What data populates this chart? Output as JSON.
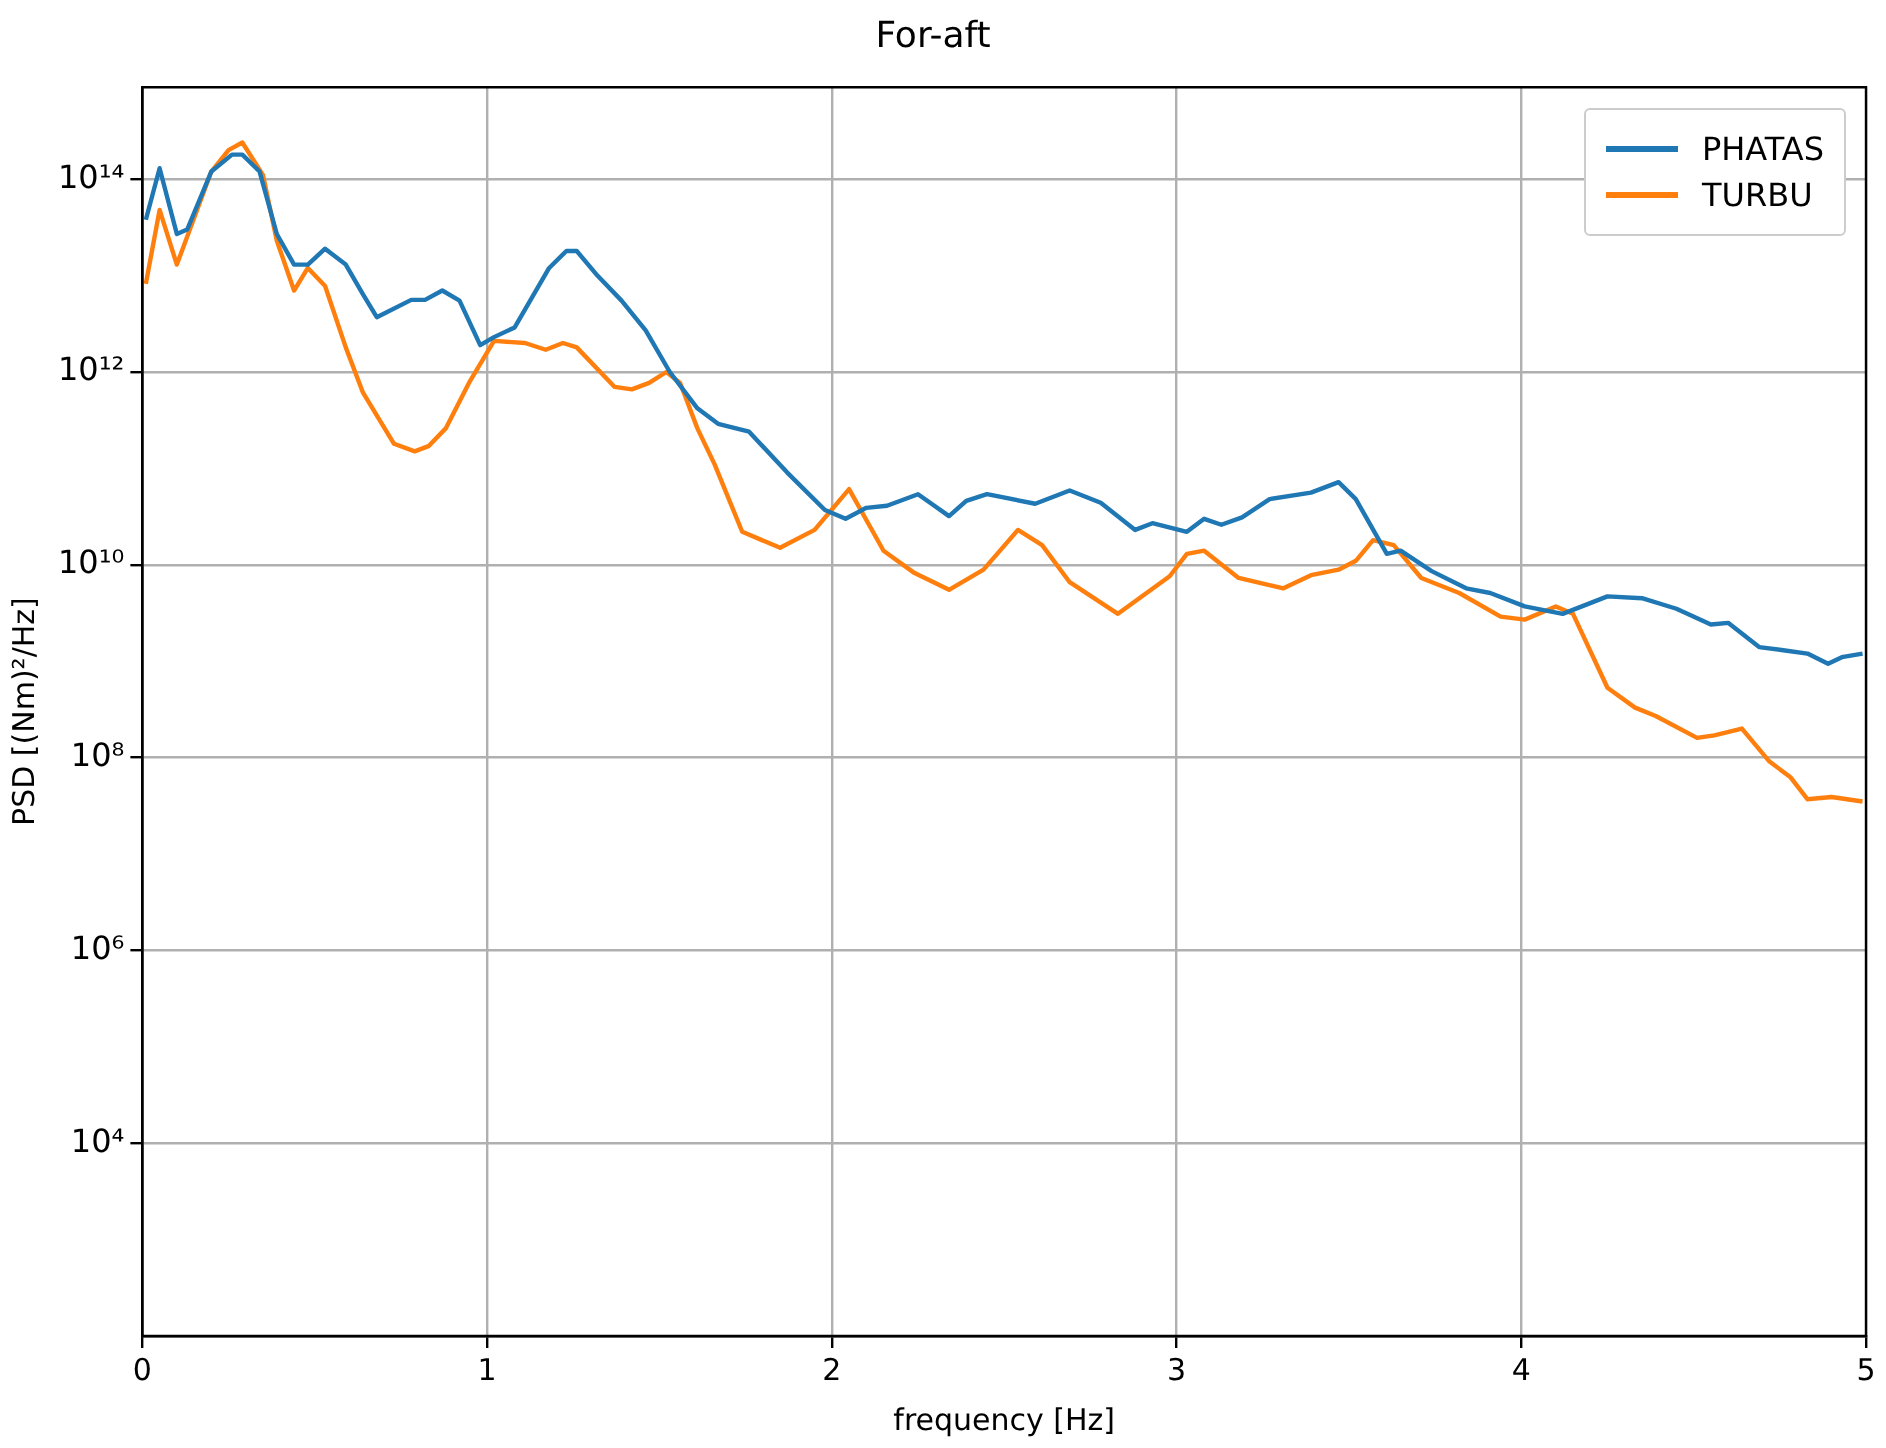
{
  "chart_data": {
    "type": "line",
    "title": "For-aft",
    "xlabel": "frequency [Hz]",
    "ylabel": "PSD [(Nm)²/Hz]",
    "log": "y",
    "grid": true,
    "legend": "top right",
    "marker": "none",
    "line_style": "solid",
    "xlim": [
      0,
      5
    ],
    "xticks": [
      0,
      1,
      2,
      3,
      4,
      5
    ],
    "ylim": [
      100,
      900000000000000.0
    ],
    "yticks": [
      {
        "value": 10000.0,
        "label": "10⁴"
      },
      {
        "value": 1000000.0,
        "label": "10⁶"
      },
      {
        "value": 100000000.0,
        "label": "10⁸"
      },
      {
        "value": 10000000000.0,
        "label": "10¹⁰"
      },
      {
        "value": 1000000000000.0,
        "label": "10¹²"
      },
      {
        "value": 100000000000000.0,
        "label": "10¹⁴"
      }
    ],
    "series": [
      {
        "name": "PHATAS",
        "color": "#1f77b4",
        "x": [
          0.01,
          0.05,
          0.1,
          0.13,
          0.2,
          0.26,
          0.29,
          0.34,
          0.39,
          0.44,
          0.48,
          0.53,
          0.59,
          0.64,
          0.68,
          0.78,
          0.82,
          0.87,
          0.92,
          0.98,
          1.02,
          1.08,
          1.18,
          1.23,
          1.26,
          1.32,
          1.39,
          1.46,
          1.53,
          1.61,
          1.67,
          1.76,
          1.87,
          1.98,
          2.04,
          2.1,
          2.16,
          2.25,
          2.34,
          2.39,
          2.45,
          2.59,
          2.69,
          2.78,
          2.88,
          2.93,
          3.03,
          3.08,
          3.13,
          3.19,
          3.27,
          3.39,
          3.47,
          3.52,
          3.61,
          3.65,
          3.74,
          3.84,
          3.91,
          4.01,
          4.12,
          4.25,
          4.35,
          4.45,
          4.55,
          4.6,
          4.69,
          4.76,
          4.83,
          4.89,
          4.93,
          4.99
        ],
        "values": [
          38000000000000.0,
          130000000000000.0,
          27000000000000.0,
          30000000000000.0,
          120000000000000.0,
          180000000000000.0,
          180000000000000.0,
          120000000000000.0,
          27000000000000.0,
          13000000000000.0,
          13000000000000.0,
          19000000000000.0,
          13000000000000.0,
          6400000000000.0,
          3700000000000.0,
          5600000000000.0,
          5600000000000.0,
          7000000000000.0,
          5500000000000.0,
          1900000000000.0,
          2300000000000.0,
          2900000000000.0,
          12000000000000.0,
          18000000000000.0,
          18000000000000.0,
          10000000000000.0,
          5500000000000.0,
          2700000000000.0,
          1000000000000.0,
          420000000000.0,
          290000000000.0,
          240000000000.0,
          91000000000.0,
          37000000000.0,
          30000000000.0,
          39000000000.0,
          41000000000.0,
          54000000000.0,
          32000000000.0,
          46000000000.0,
          54000000000.0,
          43000000000.0,
          59000000000.0,
          44000000000.0,
          23000000000.0,
          27000000000.0,
          22000000000.0,
          30000000000.0,
          26000000000.0,
          31000000000.0,
          48000000000.0,
          56000000000.0,
          72000000000.0,
          48000000000.0,
          13000000000.0,
          14000000000.0,
          8600000000.0,
          5700000000.0,
          5100000000.0,
          3700000000.0,
          3100000000.0,
          4700000000.0,
          4500000000.0,
          3500000000.0,
          2400000000.0,
          2500000000.0,
          1400000000.0,
          1300000000.0,
          1200000000.0,
          940000000.0,
          1100000000.0,
          1200000000.0
        ]
      },
      {
        "name": "TURBU",
        "color": "#ff7f0e",
        "x": [
          0.01,
          0.05,
          0.1,
          0.2,
          0.25,
          0.29,
          0.35,
          0.39,
          0.44,
          0.48,
          0.53,
          0.59,
          0.64,
          0.73,
          0.79,
          0.83,
          0.88,
          0.95,
          1.02,
          1.11,
          1.17,
          1.22,
          1.26,
          1.37,
          1.42,
          1.47,
          1.52,
          1.56,
          1.61,
          1.66,
          1.74,
          1.85,
          1.95,
          2.05,
          2.15,
          2.24,
          2.34,
          2.44,
          2.54,
          2.61,
          2.69,
          2.83,
          2.98,
          3.03,
          3.08,
          3.18,
          3.31,
          3.39,
          3.47,
          3.52,
          3.57,
          3.63,
          3.71,
          3.82,
          3.94,
          4.01,
          4.1,
          4.15,
          4.25,
          4.33,
          4.39,
          4.51,
          4.56,
          4.64,
          4.72,
          4.78,
          4.83,
          4.9,
          4.99
        ],
        "values": [
          8200000000000.0,
          48000000000000.0,
          13000000000000.0,
          120000000000000.0,
          200000000000000.0,
          240000000000000.0,
          110000000000000.0,
          23000000000000.0,
          7000000000000.0,
          12000000000000.0,
          7800000000000.0,
          1800000000000.0,
          610000000000.0,
          180000000000.0,
          150000000000.0,
          170000000000.0,
          260000000000.0,
          800000000000.0,
          2100000000000.0,
          2000000000000.0,
          1700000000000.0,
          2000000000000.0,
          1800000000000.0,
          700000000000.0,
          660000000000.0,
          770000000000.0,
          1000000000000.0,
          770000000000.0,
          260000000000.0,
          110000000000.0,
          22000000000.0,
          15000000000.0,
          23000000000.0,
          61000000000.0,
          14000000000.0,
          8200000000.0,
          5500000000.0,
          8900000000.0,
          23000000000.0,
          16000000000.0,
          6600000000.0,
          3100000000.0,
          7600000000.0,
          13000000000.0,
          14000000000.0,
          7300000000.0,
          5700000000.0,
          7800000000.0,
          8900000000.0,
          11000000000.0,
          18000000000.0,
          16000000000.0,
          7300000000.0,
          5100000000.0,
          2900000000.0,
          2700000000.0,
          3700000000.0,
          3100000000.0,
          530000000.0,
          330000000.0,
          270000000.0,
          160000000.0,
          170000000.0,
          200000000.0,
          91000000.0,
          63000000.0,
          37000000.0,
          39000000.0,
          35000000.0
        ]
      }
    ]
  }
}
